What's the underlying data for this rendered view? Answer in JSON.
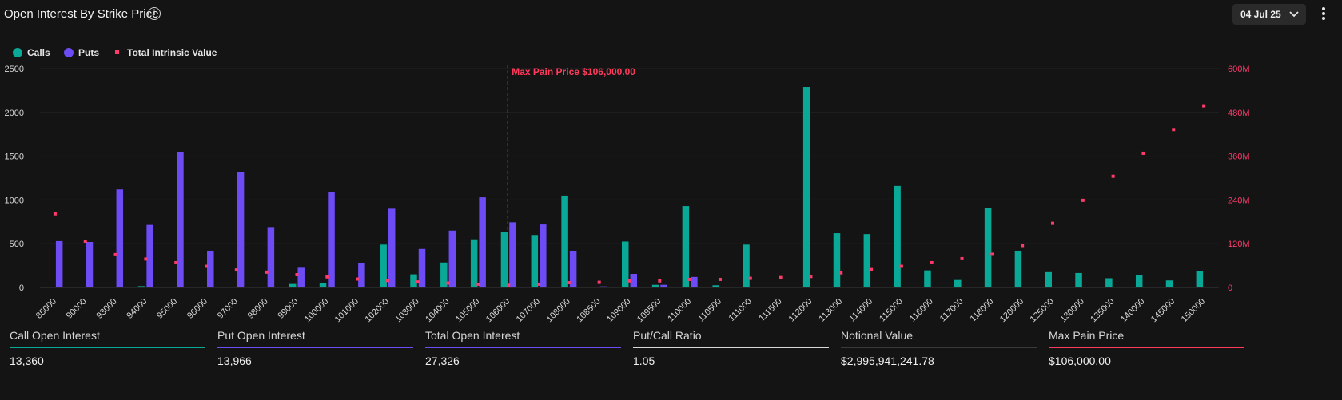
{
  "header": {
    "title": "Open Interest By Strike Price",
    "date": "04 Jul 25"
  },
  "legend": {
    "calls": "Calls",
    "puts": "Puts",
    "intrinsic": "Total Intrinsic Value"
  },
  "colors": {
    "calls": "#0aa896",
    "puts": "#6d4cf6",
    "intrinsic": "#ff3b6b",
    "accent_red": "#ff3b5c"
  },
  "chart_data": {
    "type": "bar",
    "title": "Open Interest By Strike Price",
    "categories": [
      "85000",
      "90000",
      "93000",
      "94000",
      "95000",
      "96000",
      "97000",
      "98000",
      "99000",
      "100000",
      "101000",
      "102000",
      "103000",
      "104000",
      "105000",
      "106000",
      "107000",
      "108000",
      "108500",
      "109000",
      "109500",
      "110000",
      "110500",
      "111000",
      "111500",
      "112000",
      "113000",
      "114000",
      "115000",
      "116000",
      "117000",
      "118000",
      "120000",
      "125000",
      "130000",
      "135000",
      "140000",
      "145000",
      "150000"
    ],
    "series": [
      {
        "name": "Calls",
        "values": [
          0,
          0,
          0,
          15,
          0,
          0,
          0,
          0,
          40,
          50,
          0,
          490,
          150,
          285,
          550,
          635,
          600,
          1050,
          0,
          525,
          30,
          930,
          25,
          490,
          8,
          2290,
          620,
          610,
          1160,
          195,
          85,
          905,
          420,
          175,
          165,
          105,
          140,
          80,
          185
        ]
      },
      {
        "name": "Puts",
        "values": [
          530,
          520,
          1120,
          715,
          1545,
          420,
          1315,
          690,
          225,
          1095,
          280,
          900,
          440,
          650,
          1030,
          745,
          720,
          420,
          12,
          155,
          30,
          120,
          0,
          0,
          0,
          0,
          0,
          0,
          0,
          0,
          0,
          0,
          0,
          0,
          0,
          0,
          0,
          0,
          0
        ]
      },
      {
        "name": "Total Intrinsic Value",
        "axis": "right",
        "values": [
          202000000,
          127000000,
          90000000,
          78000000,
          68000000,
          58000000,
          48000000,
          42000000,
          35000000,
          29000000,
          23000000,
          19000000,
          15000000,
          12000000,
          9000000,
          6000000,
          9000000,
          13000000,
          14000000,
          18000000,
          18000000,
          22000000,
          22000000,
          25000000,
          27000000,
          30000000,
          40000000,
          49000000,
          58000000,
          68000000,
          79000000,
          91000000,
          115000000,
          176000000,
          239000000,
          305000000,
          368000000,
          433000000,
          498000000
        ]
      }
    ],
    "y_ticks": [
      "0",
      "500",
      "1000",
      "1500",
      "2000",
      "2500"
    ],
    "ylim": [
      0,
      2500
    ],
    "y2_ticks": [
      "0",
      "120M",
      "240M",
      "360M",
      "480M",
      "600M"
    ],
    "y2lim": [
      0,
      600000000
    ],
    "max_pain_index": 15,
    "max_pain_label": "Max Pain Price $106,000.00"
  },
  "stats": [
    {
      "label": "Call Open Interest",
      "value": "13,360",
      "color": "#0aa896"
    },
    {
      "label": "Put Open Interest",
      "value": "13,966",
      "color": "#6d4cf6"
    },
    {
      "label": "Total Open Interest",
      "value": "27,326",
      "color": "#6d4cf6"
    },
    {
      "label": "Put/Call Ratio",
      "value": "1.05",
      "color": "#d9d9d9"
    },
    {
      "label": "Notional Value",
      "value": "$2,995,941,241.78",
      "color": "#3a3a3a"
    },
    {
      "label": "Max Pain Price",
      "value": "$106,000.00",
      "color": "#ff3b5c"
    }
  ]
}
